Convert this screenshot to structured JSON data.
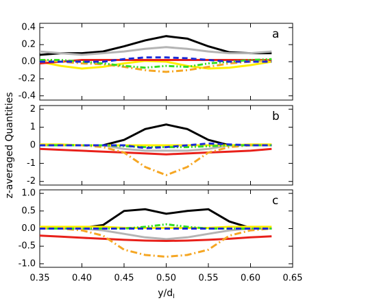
{
  "chart_data": [
    {
      "type": "line",
      "label": "a",
      "x": [
        0.35,
        0.375,
        0.4,
        0.425,
        0.45,
        0.475,
        0.5,
        0.525,
        0.55,
        0.575,
        0.6,
        0.625
      ],
      "xlim": [
        0.35,
        0.65
      ],
      "xticks": [
        0.35,
        0.4,
        0.45,
        0.5,
        0.55,
        0.6,
        0.65
      ],
      "show_xtick_labels": false,
      "ylim": [
        -0.45,
        0.45
      ],
      "yticks": [
        0.4,
        0.2,
        {
          "value": 0,
          "label": "0.0"
        },
        -0.2,
        -0.4
      ],
      "series": [
        {
          "color": "#000000",
          "dash": "solid",
          "values": [
            0.08,
            0.1,
            0.1,
            0.12,
            0.18,
            0.25,
            0.3,
            0.27,
            0.18,
            0.11,
            0.1,
            0.1
          ]
        },
        {
          "color": "#b4b4b4",
          "dash": "solid",
          "values": [
            0.12,
            0.1,
            0.08,
            0.1,
            0.12,
            0.15,
            0.17,
            0.15,
            0.12,
            0.1,
            0.1,
            0.12
          ]
        },
        {
          "color": "#ffee00",
          "dash": "solid",
          "values": [
            0.0,
            -0.05,
            -0.08,
            -0.06,
            -0.02,
            0.01,
            0.0,
            -0.05,
            -0.08,
            -0.07,
            -0.04,
            0.0
          ]
        },
        {
          "color": "#e8201a",
          "dash": "solid",
          "values": [
            -0.02,
            0.0,
            0.02,
            0.02,
            0.02,
            0.02,
            0.02,
            0.02,
            0.02,
            0.02,
            0.02,
            0.02
          ]
        },
        {
          "color": "#f5a623",
          "dash": "dashdot",
          "values": [
            0.02,
            0.0,
            -0.02,
            -0.03,
            -0.06,
            -0.1,
            -0.12,
            -0.1,
            -0.06,
            -0.02,
            0.0,
            0.02
          ]
        },
        {
          "color": "#33dd22",
          "dash": "dashdotdot",
          "values": [
            0.02,
            0.02,
            0.0,
            -0.02,
            -0.05,
            -0.07,
            -0.05,
            -0.06,
            -0.02,
            0.0,
            0.02,
            0.03
          ]
        },
        {
          "color": "#1a2ad8",
          "dash": "dashed",
          "values": [
            0.0,
            0.0,
            0.0,
            0.0,
            0.03,
            0.05,
            0.05,
            0.04,
            0.02,
            0.0,
            0.0,
            0.0
          ]
        }
      ]
    },
    {
      "type": "line",
      "label": "b",
      "ylabel": "z-averaged Quantities",
      "x": [
        0.35,
        0.375,
        0.4,
        0.425,
        0.45,
        0.475,
        0.5,
        0.525,
        0.55,
        0.575,
        0.6,
        0.625
      ],
      "xlim": [
        0.35,
        0.65
      ],
      "xticks": [
        0.35,
        0.4,
        0.45,
        0.5,
        0.55,
        0.6,
        0.65
      ],
      "show_xtick_labels": false,
      "ylim": [
        -2.2,
        2.2
      ],
      "yticks": [
        2,
        1,
        0,
        -1,
        -2
      ],
      "series": [
        {
          "color": "#000000",
          "dash": "solid",
          "values": [
            0,
            0,
            0,
            0,
            0.3,
            0.9,
            1.15,
            0.9,
            0.3,
            0,
            0,
            0
          ]
        },
        {
          "color": "#b4b4b4",
          "dash": "solid",
          "values": [
            0,
            0,
            0,
            0,
            -0.2,
            -0.3,
            -0.3,
            -0.3,
            -0.2,
            0,
            0,
            0
          ]
        },
        {
          "color": "#ffee00",
          "dash": "solid",
          "values": [
            0.05,
            0.05,
            0,
            0,
            0,
            0,
            0,
            0,
            0,
            0,
            0.05,
            0.05
          ]
        },
        {
          "color": "#e8201a",
          "dash": "solid",
          "values": [
            -0.2,
            -0.25,
            -0.3,
            -0.35,
            -0.4,
            -0.45,
            -0.5,
            -0.45,
            -0.4,
            -0.35,
            -0.3,
            -0.2
          ]
        },
        {
          "color": "#f5a623",
          "dash": "dashdot",
          "values": [
            0,
            0,
            0,
            -0.1,
            -0.4,
            -1.2,
            -1.65,
            -1.2,
            -0.4,
            -0.1,
            0,
            0
          ]
        },
        {
          "color": "#33dd22",
          "dash": "dashdotdot",
          "values": [
            0,
            0,
            0,
            0,
            -0.05,
            -0.1,
            -0.1,
            -0.1,
            -0.05,
            0,
            0,
            0
          ]
        },
        {
          "color": "#1a2ad8",
          "dash": "dashed",
          "values": [
            0,
            0,
            0,
            0,
            0,
            -0.15,
            -0.1,
            0,
            0.1,
            0.05,
            0,
            0
          ]
        }
      ]
    },
    {
      "type": "line",
      "label": "c",
      "xlabel": "y/d",
      "xlabel_sub": "I",
      "x": [
        0.35,
        0.375,
        0.4,
        0.425,
        0.45,
        0.475,
        0.5,
        0.525,
        0.55,
        0.575,
        0.6,
        0.625
      ],
      "xlim": [
        0.35,
        0.65
      ],
      "xticks": [
        0.35,
        {
          "value": 0.4,
          "label": "0.40"
        },
        0.45,
        {
          "value": 0.5,
          "label": "0.50"
        },
        0.55,
        {
          "value": 0.6,
          "label": "0.60"
        },
        0.65
      ],
      "show_xtick_labels": true,
      "ylim": [
        -1.1,
        1.1
      ],
      "yticks": [
        {
          "value": 1,
          "label": "1.0"
        },
        0.5,
        {
          "value": 0,
          "label": "0.0"
        },
        -0.5,
        {
          "value": -1,
          "label": "-1.0"
        }
      ],
      "series": [
        {
          "color": "#000000",
          "dash": "solid",
          "values": [
            0,
            0,
            0.02,
            0.1,
            0.5,
            0.55,
            0.42,
            0.5,
            0.55,
            0.2,
            0.02,
            0
          ]
        },
        {
          "color": "#b4b4b4",
          "dash": "solid",
          "values": [
            0,
            0,
            0,
            -0.05,
            -0.15,
            -0.25,
            -0.3,
            -0.25,
            -0.15,
            -0.05,
            0,
            0
          ]
        },
        {
          "color": "#ffee00",
          "dash": "solid",
          "values": [
            0.05,
            0.05,
            0.05,
            0.05,
            0.02,
            0.02,
            0.02,
            0.02,
            0.02,
            0.05,
            0.05,
            0.05
          ]
        },
        {
          "color": "#e8201a",
          "dash": "solid",
          "values": [
            -0.2,
            -0.23,
            -0.26,
            -0.29,
            -0.32,
            -0.34,
            -0.35,
            -0.34,
            -0.32,
            -0.29,
            -0.25,
            -0.22
          ]
        },
        {
          "color": "#f5a623",
          "dash": "dashdot",
          "values": [
            0,
            0,
            -0.05,
            -0.2,
            -0.6,
            -0.75,
            -0.8,
            -0.75,
            -0.6,
            -0.2,
            -0.05,
            0
          ]
        },
        {
          "color": "#33dd22",
          "dash": "dashdotdot",
          "values": [
            0,
            0,
            0,
            0,
            0,
            0.05,
            0.12,
            0.05,
            0,
            0,
            0,
            0
          ]
        },
        {
          "color": "#1a2ad8",
          "dash": "dashed",
          "values": [
            0,
            0,
            0,
            0,
            0,
            0,
            0,
            0,
            0,
            0,
            0,
            0
          ]
        }
      ]
    }
  ]
}
